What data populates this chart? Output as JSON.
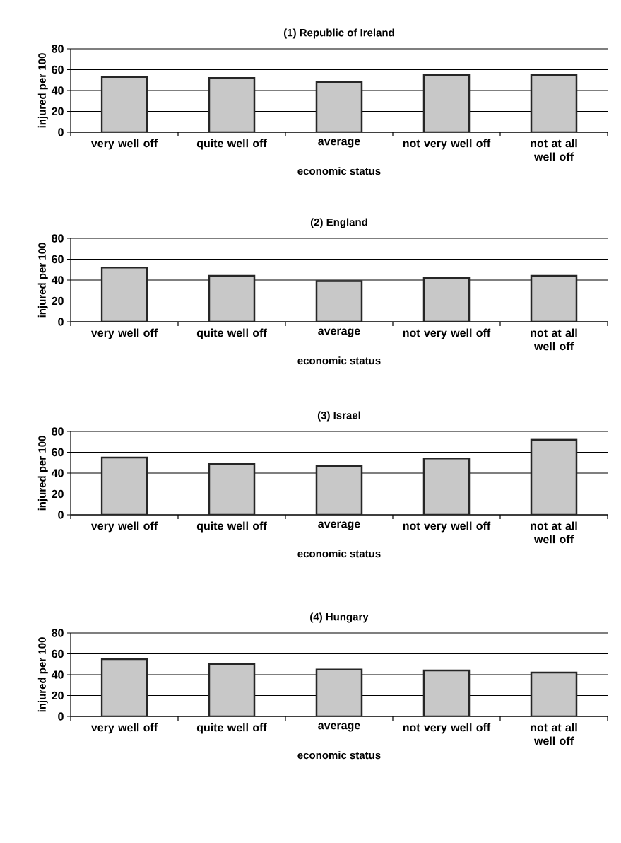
{
  "chart_data": [
    {
      "type": "bar",
      "title": "(1) Republic of Ireland",
      "xlabel": "economic status",
      "ylabel": "injured per 100",
      "categories": [
        "very well off",
        "quite well off",
        "average",
        "not very well off",
        "not at all well off"
      ],
      "values": [
        53,
        52,
        48,
        55,
        55
      ],
      "color": "#c8c8c8",
      "ylim": [
        0,
        80
      ],
      "yticks": [
        0,
        20,
        40,
        60,
        80
      ],
      "grid": "y"
    },
    {
      "type": "bar",
      "title": "(2) England",
      "xlabel": "economic status",
      "ylabel": "injured per 100",
      "categories": [
        "very well off",
        "quite well off",
        "average",
        "not very well off",
        "not at all well off"
      ],
      "values": [
        52,
        44,
        39,
        42,
        44
      ],
      "color": "#c8c8c8",
      "ylim": [
        0,
        80
      ],
      "yticks": [
        0,
        20,
        40,
        60,
        80
      ],
      "grid": "y"
    },
    {
      "type": "bar",
      "title": "(3) Israel",
      "xlabel": "economic status",
      "ylabel": "injured per 100",
      "categories": [
        "very well off",
        "quite well off",
        "average",
        "not very well off",
        "not at all well off"
      ],
      "values": [
        55,
        49,
        47,
        54,
        72
      ],
      "color": "#c8c8c8",
      "ylim": [
        0,
        80
      ],
      "yticks": [
        0,
        20,
        40,
        60,
        80
      ],
      "grid": "y"
    },
    {
      "type": "bar",
      "title": "(4) Hungary",
      "xlabel": "economic status",
      "ylabel": "injured per 100",
      "categories": [
        "very well off",
        "quite well off",
        "average",
        "not very well off",
        "not at all well off"
      ],
      "values": [
        55,
        50,
        45,
        44,
        42
      ],
      "color": "#c8c8c8",
      "ylim": [
        0,
        80
      ],
      "yticks": [
        0,
        20,
        40,
        60,
        80
      ],
      "grid": "y"
    }
  ]
}
